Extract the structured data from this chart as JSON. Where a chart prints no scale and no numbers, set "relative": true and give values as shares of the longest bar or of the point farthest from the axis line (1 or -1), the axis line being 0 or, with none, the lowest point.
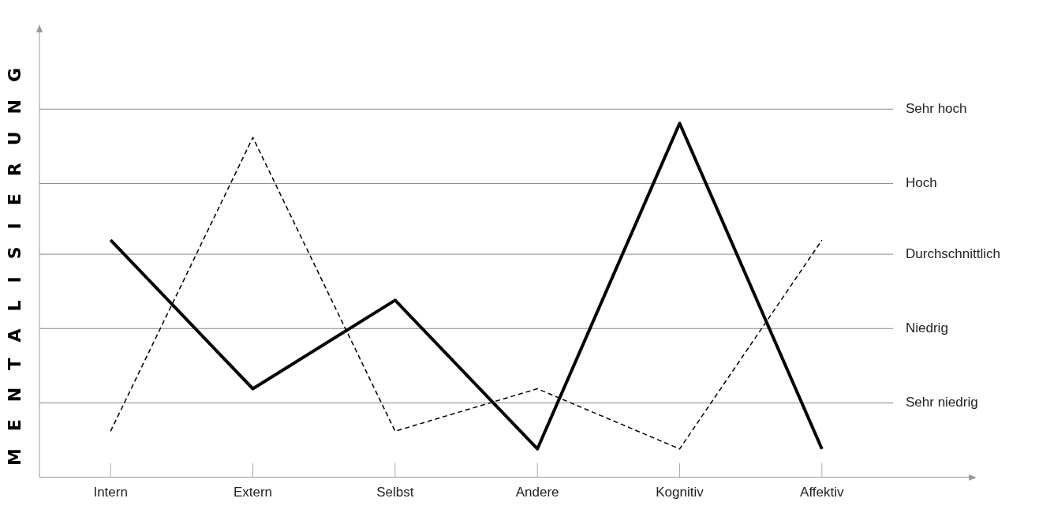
{
  "chart_data": {
    "type": "line",
    "ylabel": "MENTALISIERUNG",
    "relative": true,
    "categories": [
      "Intern",
      "Extern",
      "Selbst",
      "Andere",
      "Kognitiv",
      "Affektiv"
    ],
    "series": [
      {
        "color": "#000000",
        "line_style": "solid",
        "values": [
          0.67,
          0.25,
          0.5,
          0.08,
          1,
          0.08
        ]
      },
      {
        "color": "#000000",
        "line_style": "dashed",
        "values": [
          0.13,
          0.96,
          0.13,
          0.25,
          0.08,
          0.67
        ]
      }
    ],
    "ref_lines": [
      {
        "axis": "y",
        "value": 0.21,
        "label": "Sehr niedrig",
        "color": "#888888"
      },
      {
        "axis": "y",
        "value": 0.42,
        "label": "Niedrig",
        "color": "#888888"
      },
      {
        "axis": "y",
        "value": 0.63,
        "label": "Durchschnittlich",
        "color": "#888888"
      },
      {
        "axis": "y",
        "value": 0.83,
        "label": "Hoch",
        "color": "#888888"
      },
      {
        "axis": "y",
        "value": 1.04,
        "label": "Sehr hoch",
        "color": "#888888"
      }
    ],
    "marker": "none",
    "legend": false
  }
}
